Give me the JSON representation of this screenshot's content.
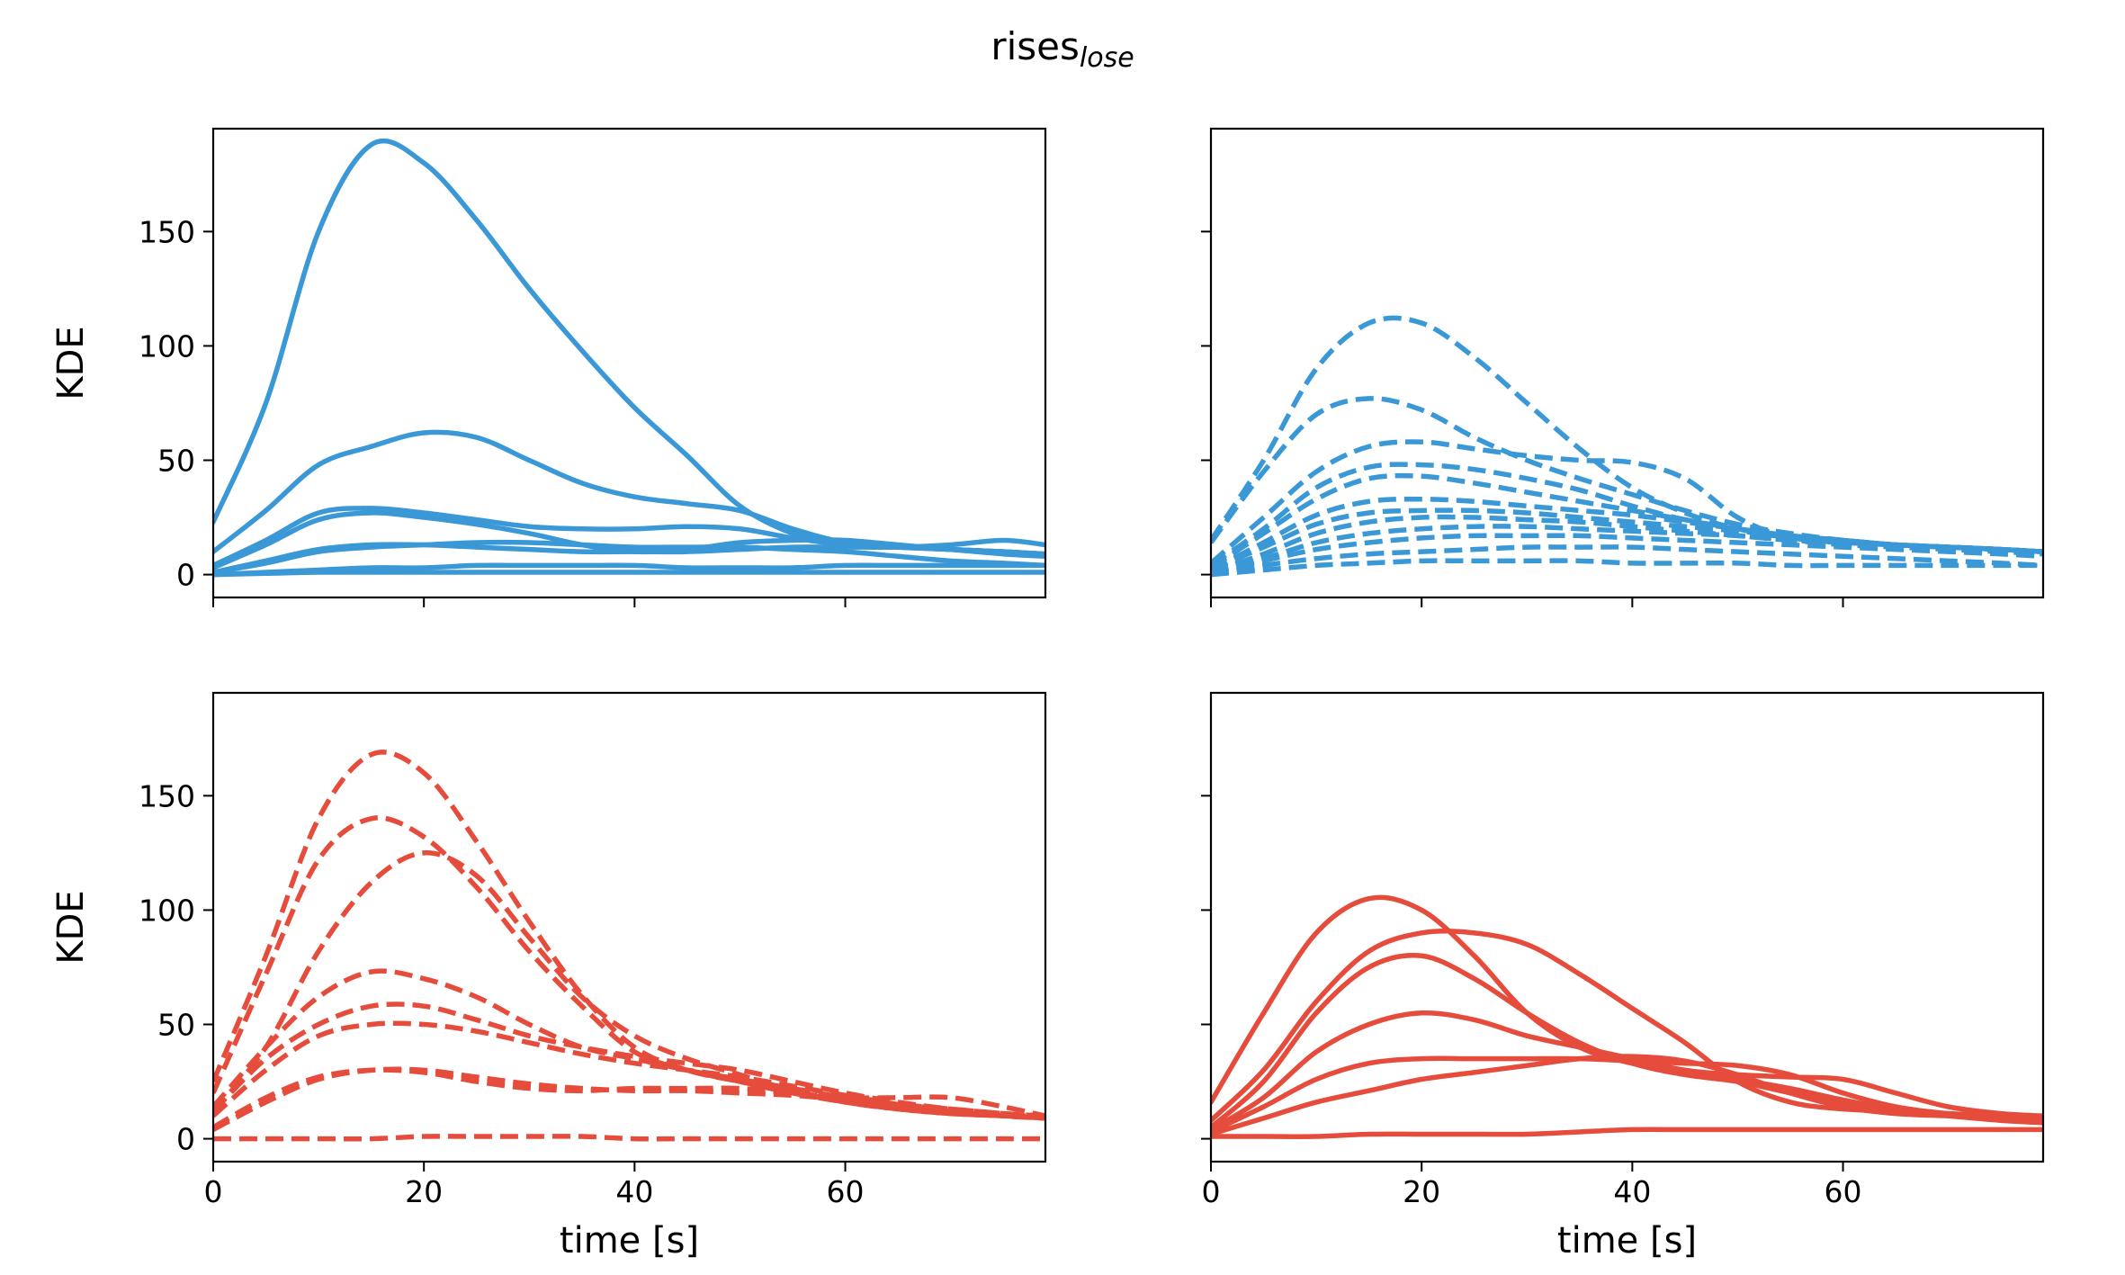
{
  "figure": {
    "title": "rises",
    "title_subscript": "lose"
  },
  "colors": {
    "blue": "#3a98d6",
    "red": "#e64c3c"
  },
  "chart_data": [
    {
      "type": "line",
      "panel": "top-left",
      "color": "blue",
      "linestyle": "solid",
      "ylabel": "KDE",
      "xlabel": "",
      "xlim": [
        0,
        79
      ],
      "ylim": [
        -10,
        195
      ],
      "xticks": [
        0,
        20,
        40,
        60
      ],
      "yticks": [
        0,
        50,
        100,
        150
      ],
      "show_xticklabels": false,
      "show_yticklabels": true,
      "x": [
        0,
        5,
        10,
        15,
        20,
        25,
        30,
        35,
        40,
        45,
        50,
        55,
        60,
        65,
        70,
        75,
        79
      ],
      "series": [
        {
          "values": [
            23,
            75,
            150,
            188,
            180,
            155,
            125,
            98,
            73,
            52,
            30,
            18,
            13,
            12,
            11,
            10,
            9
          ]
        },
        {
          "values": [
            10,
            28,
            48,
            56,
            62,
            60,
            50,
            40,
            34,
            31,
            28,
            20,
            14,
            12,
            11,
            10,
            9
          ]
        },
        {
          "values": [
            4,
            15,
            27,
            29,
            27,
            24,
            21,
            20,
            20,
            21,
            20,
            16,
            13,
            12,
            11,
            10,
            9
          ]
        },
        {
          "values": [
            3,
            13,
            24,
            27,
            25,
            22,
            18,
            13,
            10,
            11,
            14,
            15,
            15,
            13,
            11,
            9,
            8
          ]
        },
        {
          "values": [
            1,
            6,
            11,
            13,
            13,
            12,
            11,
            10,
            10,
            10,
            11,
            12,
            12,
            12,
            13,
            15,
            13
          ]
        },
        {
          "values": [
            1,
            5,
            10,
            12,
            13,
            14,
            14,
            13,
            12,
            12,
            12,
            11,
            10,
            8,
            6,
            5,
            4
          ]
        },
        {
          "values": [
            0,
            1,
            2,
            3,
            3,
            4,
            4,
            4,
            4,
            3,
            3,
            3,
            4,
            4,
            4,
            4,
            4
          ]
        },
        {
          "values": [
            0,
            0.5,
            1,
            1,
            1,
            1,
            1,
            1,
            1,
            1,
            1,
            1,
            1,
            1,
            1,
            1,
            1
          ]
        }
      ]
    },
    {
      "type": "line",
      "panel": "top-right",
      "color": "blue",
      "linestyle": "dashed",
      "ylabel": "",
      "xlabel": "",
      "xlim": [
        0,
        79
      ],
      "ylim": [
        -10,
        195
      ],
      "xticks": [
        0,
        20,
        40,
        60
      ],
      "yticks": [
        0,
        50,
        100,
        150
      ],
      "show_xticklabels": false,
      "show_yticklabels": false,
      "x": [
        0,
        5,
        10,
        15,
        20,
        25,
        30,
        35,
        40,
        45,
        50,
        55,
        60,
        65,
        70,
        75,
        79
      ],
      "series": [
        {
          "values": [
            15,
            50,
            90,
            110,
            110,
            95,
            75,
            55,
            38,
            27,
            20,
            16,
            14,
            13,
            12,
            11,
            10
          ]
        },
        {
          "values": [
            14,
            45,
            70,
            77,
            72,
            60,
            50,
            42,
            35,
            28,
            22,
            18,
            15,
            13,
            12,
            11,
            10
          ]
        },
        {
          "values": [
            5,
            25,
            45,
            56,
            58,
            55,
            52,
            50,
            49,
            42,
            25,
            16,
            14,
            13,
            12,
            11,
            10
          ]
        },
        {
          "values": [
            4,
            20,
            38,
            47,
            48,
            46,
            42,
            37,
            30,
            24,
            20,
            17,
            15,
            13,
            12,
            11,
            10
          ]
        },
        {
          "values": [
            3,
            18,
            33,
            42,
            43,
            40,
            36,
            32,
            28,
            24,
            20,
            17,
            15,
            13,
            12,
            11,
            10
          ]
        },
        {
          "values": [
            2,
            14,
            26,
            32,
            33,
            32,
            30,
            28,
            26,
            23,
            20,
            17,
            15,
            13,
            12,
            11,
            10
          ]
        },
        {
          "values": [
            2,
            12,
            22,
            27,
            28,
            28,
            27,
            25,
            23,
            21,
            19,
            17,
            15,
            13,
            12,
            11,
            10
          ]
        },
        {
          "values": [
            1,
            9,
            18,
            23,
            25,
            25,
            24,
            23,
            21,
            19,
            17,
            15,
            14,
            13,
            12,
            11,
            10
          ]
        },
        {
          "values": [
            1,
            7,
            14,
            18,
            20,
            21,
            21,
            20,
            19,
            18,
            17,
            15,
            13,
            12,
            11,
            10,
            9
          ]
        },
        {
          "values": [
            1,
            6,
            11,
            14,
            16,
            17,
            17,
            17,
            16,
            15,
            14,
            13,
            12,
            11,
            10,
            9,
            8
          ]
        },
        {
          "values": [
            0,
            4,
            7,
            9,
            10,
            11,
            12,
            12,
            12,
            11,
            10,
            9,
            8,
            7,
            6,
            5,
            4
          ]
        },
        {
          "values": [
            0,
            2,
            4,
            5,
            6,
            6,
            6,
            6,
            5,
            5,
            5,
            4,
            4,
            4,
            4,
            4,
            4
          ]
        }
      ]
    },
    {
      "type": "line",
      "panel": "bottom-left",
      "color": "red",
      "linestyle": "dashed",
      "ylabel": "KDE",
      "xlabel": "time [s]",
      "xlim": [
        0,
        79
      ],
      "ylim": [
        -10,
        195
      ],
      "xticks": [
        0,
        20,
        40,
        60
      ],
      "yticks": [
        0,
        50,
        100,
        150
      ],
      "show_xticklabels": true,
      "show_yticklabels": true,
      "x": [
        0,
        5,
        10,
        15,
        20,
        25,
        30,
        35,
        40,
        45,
        50,
        55,
        60,
        65,
        70,
        75,
        79
      ],
      "series": [
        {
          "values": [
            25,
            80,
            140,
            168,
            160,
            130,
            95,
            63,
            40,
            30,
            25,
            20,
            16,
            13,
            11,
            10,
            9
          ]
        },
        {
          "values": [
            20,
            72,
            122,
            140,
            132,
            110,
            82,
            58,
            38,
            30,
            25,
            20,
            17,
            14,
            12,
            10,
            9
          ]
        },
        {
          "values": [
            12,
            40,
            82,
            112,
            125,
            115,
            88,
            62,
            45,
            35,
            28,
            21,
            16,
            13,
            11,
            10,
            9
          ]
        },
        {
          "values": [
            14,
            40,
            62,
            73,
            70,
            62,
            50,
            40,
            35,
            30,
            26,
            22,
            18,
            15,
            13,
            11,
            10
          ]
        },
        {
          "values": [
            12,
            35,
            50,
            58,
            58,
            52,
            45,
            40,
            36,
            33,
            30,
            25,
            20,
            16,
            13,
            11,
            10
          ]
        },
        {
          "values": [
            10,
            30,
            45,
            50,
            50,
            47,
            42,
            37,
            33,
            30,
            27,
            23,
            19,
            15,
            12,
            10,
            9
          ]
        },
        {
          "values": [
            5,
            18,
            27,
            30,
            29,
            25,
            22,
            21,
            22,
            22,
            22,
            20,
            18,
            18,
            18,
            14,
            10
          ]
        },
        {
          "values": [
            4,
            16,
            26,
            30,
            30,
            27,
            24,
            22,
            21,
            21,
            20,
            19,
            17,
            15,
            13,
            11,
            9
          ]
        },
        {
          "values": [
            0,
            0,
            0,
            0,
            1,
            1,
            1,
            1,
            0,
            0,
            0,
            0,
            0,
            0,
            0,
            0,
            0
          ]
        }
      ]
    },
    {
      "type": "line",
      "panel": "bottom-right",
      "color": "red",
      "linestyle": "solid",
      "ylabel": "",
      "xlabel": "time [s]",
      "xlim": [
        0,
        79
      ],
      "ylim": [
        -10,
        195
      ],
      "xticks": [
        0,
        20,
        40,
        60
      ],
      "yticks": [
        0,
        50,
        100,
        150
      ],
      "show_xticklabels": true,
      "show_yticklabels": false,
      "x": [
        0,
        5,
        10,
        15,
        20,
        25,
        30,
        35,
        40,
        45,
        50,
        55,
        60,
        65,
        70,
        75,
        79
      ],
      "series": [
        {
          "values": [
            16,
            55,
            90,
            105,
            100,
            80,
            55,
            40,
            33,
            30,
            26,
            22,
            17,
            13,
            11,
            10,
            9
          ]
        },
        {
          "values": [
            8,
            30,
            60,
            82,
            90,
            90,
            85,
            72,
            57,
            42,
            25,
            16,
            13,
            12,
            11,
            10,
            9
          ]
        },
        {
          "values": [
            5,
            25,
            55,
            75,
            80,
            70,
            55,
            42,
            33,
            28,
            25,
            20,
            15,
            12,
            10,
            8,
            7
          ]
        },
        {
          "values": [
            4,
            18,
            38,
            50,
            55,
            52,
            45,
            40,
            35,
            30,
            28,
            27,
            26,
            20,
            14,
            11,
            10
          ]
        },
        {
          "values": [
            3,
            14,
            26,
            33,
            35,
            35,
            35,
            35,
            34,
            33,
            32,
            28,
            20,
            14,
            11,
            10,
            9
          ]
        },
        {
          "values": [
            2,
            9,
            16,
            21,
            26,
            29,
            32,
            35,
            36,
            34,
            28,
            20,
            14,
            11,
            10,
            9,
            8
          ]
        },
        {
          "values": [
            1,
            1,
            1,
            2,
            2,
            2,
            2,
            3,
            4,
            4,
            4,
            4,
            4,
            4,
            4,
            4,
            4
          ]
        }
      ]
    }
  ]
}
